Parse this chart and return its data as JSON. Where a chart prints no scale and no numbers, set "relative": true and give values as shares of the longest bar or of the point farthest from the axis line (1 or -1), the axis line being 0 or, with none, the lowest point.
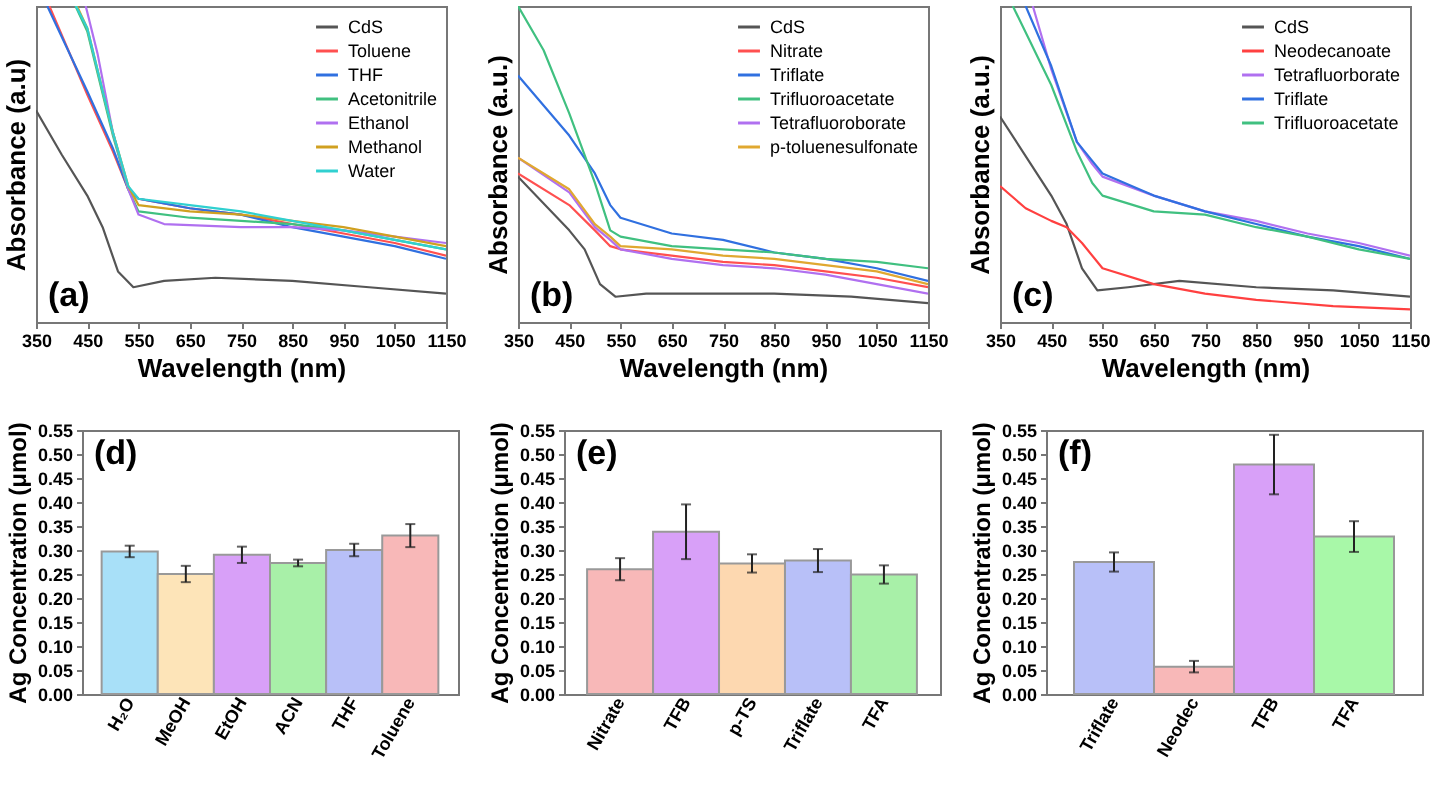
{
  "chart_data": [
    {
      "type": "line",
      "relative": true,
      "xlabel": "Wavelength (nm)",
      "ylabel": "Absorbance (a.u)",
      "xlim": [
        350,
        1150
      ],
      "xticks": [
        350,
        450,
        550,
        650,
        750,
        850,
        950,
        1050,
        1150
      ],
      "legend": "top right",
      "annotations": [
        "(a)"
      ],
      "series": [
        {
          "name": "CdS",
          "color": "#555555",
          "x": [
            350,
            400,
            450,
            480,
            510,
            540,
            600,
            700,
            850,
            1000,
            1150
          ],
          "values": [
            0.67,
            0.53,
            0.4,
            0.3,
            0.16,
            0.11,
            0.13,
            0.14,
            0.13,
            0.11,
            0.09
          ]
        },
        {
          "name": "Toluene",
          "color": "#ff5050",
          "x": [
            376,
            450,
            500,
            530,
            550,
            650,
            750,
            850,
            950,
            1050,
            1150
          ],
          "values": [
            1,
            0.72,
            0.54,
            0.42,
            0.39,
            0.36,
            0.34,
            0.31,
            0.28,
            0.25,
            0.21
          ]
        },
        {
          "name": "THF",
          "color": "#3070e0",
          "x": [
            372,
            450,
            500,
            530,
            550,
            650,
            750,
            850,
            950,
            1050,
            1150
          ],
          "values": [
            1,
            0.73,
            0.55,
            0.42,
            0.39,
            0.36,
            0.34,
            0.3,
            0.27,
            0.24,
            0.2
          ]
        },
        {
          "name": "Acetonitrile",
          "color": "#40c080",
          "x": [
            427,
            450,
            500,
            530,
            550,
            650,
            750,
            850,
            950,
            1050,
            1150
          ],
          "values": [
            1,
            0.92,
            0.59,
            0.42,
            0.35,
            0.33,
            0.32,
            0.31,
            0.29,
            0.26,
            0.23
          ]
        },
        {
          "name": "Ethanol",
          "color": "#b070f0",
          "x": [
            447,
            470,
            500,
            530,
            550,
            600,
            750,
            850,
            950,
            1050,
            1150
          ],
          "values": [
            1,
            0.85,
            0.6,
            0.42,
            0.34,
            0.31,
            0.3,
            0.3,
            0.29,
            0.27,
            0.25
          ]
        },
        {
          "name": "Methanol",
          "color": "#d0a020",
          "x": [
            430,
            450,
            500,
            530,
            550,
            650,
            750,
            850,
            950,
            1050,
            1150
          ],
          "values": [
            1,
            0.93,
            0.6,
            0.43,
            0.37,
            0.35,
            0.34,
            0.32,
            0.3,
            0.27,
            0.24
          ]
        },
        {
          "name": "Water",
          "color": "#30d0d0",
          "x": [
            428,
            450,
            500,
            530,
            550,
            650,
            750,
            850,
            950,
            1050,
            1150
          ],
          "values": [
            1,
            0.93,
            0.6,
            0.43,
            0.39,
            0.37,
            0.35,
            0.32,
            0.29,
            0.26,
            0.23
          ]
        }
      ]
    },
    {
      "type": "line",
      "relative": true,
      "xlabel": "Wavelength (nm)",
      "ylabel": "Absorbance (a.u.)",
      "xlim": [
        350,
        1150
      ],
      "xticks": [
        350,
        450,
        550,
        650,
        750,
        850,
        950,
        1050,
        1150
      ],
      "legend": "top right",
      "annotations": [
        "(b)"
      ],
      "series": [
        {
          "name": "CdS",
          "color": "#555555",
          "x": [
            350,
            450,
            480,
            510,
            540,
            600,
            700,
            850,
            1000,
            1150
          ],
          "values": [
            0.46,
            0.29,
            0.23,
            0.12,
            0.08,
            0.09,
            0.09,
            0.09,
            0.08,
            0.06
          ]
        },
        {
          "name": "Nitrate",
          "color": "#ff5050",
          "x": [
            350,
            450,
            500,
            530,
            550,
            650,
            750,
            850,
            950,
            1050,
            1150
          ],
          "values": [
            0.47,
            0.37,
            0.29,
            0.24,
            0.23,
            0.21,
            0.19,
            0.18,
            0.16,
            0.14,
            0.11
          ]
        },
        {
          "name": "Triflate",
          "color": "#3070e0",
          "x": [
            350,
            450,
            500,
            530,
            550,
            650,
            750,
            850,
            950,
            1050,
            1150
          ],
          "values": [
            0.78,
            0.59,
            0.47,
            0.37,
            0.33,
            0.28,
            0.26,
            0.22,
            0.2,
            0.17,
            0.13
          ]
        },
        {
          "name": "Trifluoroacetate",
          "color": "#40c080",
          "x": [
            350,
            400,
            450,
            500,
            530,
            550,
            650,
            750,
            850,
            950,
            1050,
            1150
          ],
          "values": [
            1,
            0.86,
            0.66,
            0.44,
            0.29,
            0.27,
            0.24,
            0.23,
            0.22,
            0.2,
            0.19,
            0.17
          ]
        },
        {
          "name": "Tetrafluoroborate",
          "color": "#b070f0",
          "x": [
            350,
            450,
            500,
            530,
            550,
            650,
            750,
            850,
            950,
            1050,
            1150
          ],
          "values": [
            0.52,
            0.41,
            0.3,
            0.26,
            0.23,
            0.2,
            0.18,
            0.17,
            0.15,
            0.12,
            0.09
          ]
        },
        {
          "name": "p-toluenesulfonate",
          "color": "#e0a830",
          "x": [
            350,
            450,
            500,
            530,
            550,
            650,
            750,
            850,
            950,
            1050,
            1150
          ],
          "values": [
            0.52,
            0.42,
            0.31,
            0.27,
            0.24,
            0.23,
            0.21,
            0.2,
            0.18,
            0.16,
            0.12
          ]
        }
      ]
    },
    {
      "type": "line",
      "relative": true,
      "xlabel": "Wavelength (nm)",
      "ylabel": "Absorbance (a.u.)",
      "xlim": [
        350,
        1150
      ],
      "xticks": [
        350,
        450,
        550,
        650,
        750,
        850,
        950,
        1050,
        1150
      ],
      "legend": "top right",
      "annotations": [
        "(c)"
      ],
      "series": [
        {
          "name": "CdS",
          "color": "#555555",
          "x": [
            350,
            450,
            480,
            510,
            540,
            600,
            700,
            850,
            1000,
            1150
          ],
          "values": [
            0.65,
            0.4,
            0.31,
            0.17,
            0.1,
            0.11,
            0.13,
            0.11,
            0.1,
            0.08
          ]
        },
        {
          "name": "Neodecanoate",
          "color": "#ff4040",
          "x": [
            350,
            400,
            450,
            480,
            510,
            550,
            650,
            750,
            850,
            1000,
            1150
          ],
          "values": [
            0.43,
            0.36,
            0.32,
            0.3,
            0.25,
            0.17,
            0.12,
            0.09,
            0.07,
            0.05,
            0.04
          ]
        },
        {
          "name": "Tetrafluorborate",
          "color": "#b070f0",
          "x": [
            414,
            450,
            500,
            530,
            550,
            650,
            750,
            850,
            950,
            1050,
            1150
          ],
          "values": [
            1,
            0.8,
            0.57,
            0.5,
            0.46,
            0.4,
            0.35,
            0.32,
            0.28,
            0.25,
            0.21
          ]
        },
        {
          "name": "Triflate",
          "color": "#3070e0",
          "x": [
            400,
            450,
            500,
            530,
            550,
            650,
            750,
            850,
            950,
            1050,
            1150
          ],
          "values": [
            1,
            0.81,
            0.57,
            0.51,
            0.47,
            0.4,
            0.35,
            0.31,
            0.27,
            0.24,
            0.2
          ]
        },
        {
          "name": "Trifluoroacetate",
          "color": "#40c080",
          "x": [
            375,
            450,
            500,
            530,
            550,
            650,
            750,
            850,
            950,
            1050,
            1150
          ],
          "values": [
            1,
            0.75,
            0.54,
            0.44,
            0.4,
            0.35,
            0.34,
            0.3,
            0.27,
            0.23,
            0.2
          ]
        }
      ]
    },
    {
      "type": "bar",
      "ylabel": "Ag Concentration (μmol)",
      "annotations": [
        "(d)"
      ],
      "categories": [
        "H₂O",
        "MeOH",
        "EtOH",
        "ACN",
        "THF",
        "Toluene"
      ],
      "values": [
        0.297,
        0.25,
        0.29,
        0.273,
        0.3,
        0.33
      ],
      "errors": [
        0.012,
        0.017,
        0.017,
        0.007,
        0.013,
        0.024
      ],
      "colors": [
        "#a8e0f8",
        "#fde4b8",
        "#d8a0f8",
        "#a8f0a8",
        "#b8c0f8",
        "#f8b8b8"
      ],
      "ylim": [
        0,
        0.55
      ],
      "yticks": [
        {
          "value": 0,
          "label": "0.00"
        },
        {
          "value": 0.05,
          "label": "0.05"
        },
        {
          "value": 0.1,
          "label": "0.10"
        },
        {
          "value": 0.15,
          "label": "0.15"
        },
        {
          "value": 0.2,
          "label": "0.20"
        },
        {
          "value": 0.25,
          "label": "0.25"
        },
        {
          "value": 0.3,
          "label": "0.30"
        },
        {
          "value": 0.35,
          "label": "0.35"
        },
        {
          "value": 0.4,
          "label": "0.40"
        },
        {
          "value": 0.45,
          "label": "0.45"
        },
        {
          "value": 0.5,
          "label": "0.50"
        },
        {
          "value": 0.55,
          "label": "0.55"
        }
      ]
    },
    {
      "type": "bar",
      "ylabel": "Ag Concentration (μmol)",
      "annotations": [
        "(e)"
      ],
      "categories": [
        "Nitrate",
        "TFB",
        "p-TS",
        "Triflate",
        "TFA"
      ],
      "values": [
        0.26,
        0.338,
        0.272,
        0.278,
        0.249
      ],
      "errors": [
        0.023,
        0.057,
        0.019,
        0.024,
        0.019
      ],
      "colors": [
        "#f8b8b8",
        "#d8a0f8",
        "#fdd8b0",
        "#b8c0f8",
        "#a8f0a8"
      ],
      "ylim": [
        0,
        0.55
      ],
      "yticks": [
        {
          "value": 0,
          "label": "0.00"
        },
        {
          "value": 0.05,
          "label": "0.05"
        },
        {
          "value": 0.1,
          "label": "0.10"
        },
        {
          "value": 0.15,
          "label": "0.15"
        },
        {
          "value": 0.2,
          "label": "0.20"
        },
        {
          "value": 0.25,
          "label": "0.25"
        },
        {
          "value": 0.3,
          "label": "0.30"
        },
        {
          "value": 0.35,
          "label": "0.35"
        },
        {
          "value": 0.4,
          "label": "0.40"
        },
        {
          "value": 0.45,
          "label": "0.45"
        },
        {
          "value": 0.5,
          "label": "0.50"
        },
        {
          "value": 0.55,
          "label": "0.55"
        }
      ]
    },
    {
      "type": "bar",
      "ylabel": "Ag Concentration (μmol)",
      "annotations": [
        "(f)"
      ],
      "categories": [
        "Triflate",
        "Neodec",
        "TFB",
        "TFA"
      ],
      "values": [
        0.275,
        0.057,
        0.478,
        0.328
      ],
      "errors": [
        0.02,
        0.012,
        0.062,
        0.032
      ],
      "colors": [
        "#b8c0f8",
        "#f8b8b8",
        "#d8a0f8",
        "#a8f8a8"
      ],
      "ylim": [
        0,
        0.55
      ],
      "yticks": [
        {
          "value": 0,
          "label": "0.00"
        },
        {
          "value": 0.05,
          "label": "0.05"
        },
        {
          "value": 0.1,
          "label": "0.10"
        },
        {
          "value": 0.15,
          "label": "0.15"
        },
        {
          "value": 0.2,
          "label": "0.20"
        },
        {
          "value": 0.25,
          "label": "0.25"
        },
        {
          "value": 0.3,
          "label": "0.30"
        },
        {
          "value": 0.35,
          "label": "0.35"
        },
        {
          "value": 0.4,
          "label": "0.40"
        },
        {
          "value": 0.45,
          "label": "0.45"
        },
        {
          "value": 0.5,
          "label": "0.50"
        },
        {
          "value": 0.55,
          "label": "0.55"
        }
      ]
    }
  ]
}
